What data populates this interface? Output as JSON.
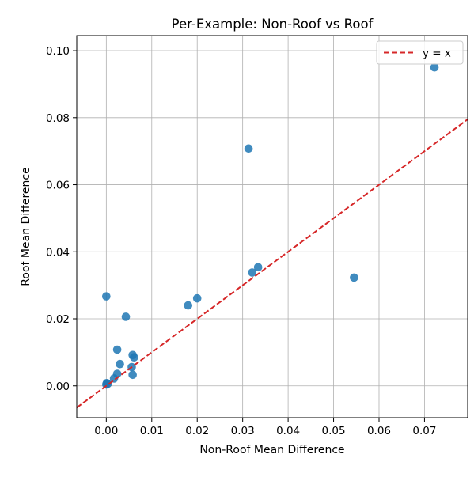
{
  "chart_data": {
    "type": "scatter",
    "title": "Per-Example: Non-Roof vs Roof",
    "xlabel": "Non-Roof Mean Difference",
    "ylabel": "Roof Mean Difference",
    "xlim": [
      -0.0065,
      0.0795
    ],
    "ylim": [
      -0.0095,
      0.1045
    ],
    "x_ticks": [
      "0.00",
      "0.01",
      "0.02",
      "0.03",
      "0.04",
      "0.05",
      "0.06",
      "0.07"
    ],
    "x_tick_values": [
      0,
      0.01,
      0.02,
      0.03,
      0.04,
      0.05,
      0.06,
      0.07
    ],
    "y_ticks": [
      "0.00",
      "0.02",
      "0.04",
      "0.06",
      "0.08",
      "0.10"
    ],
    "y_tick_values": [
      0,
      0.02,
      0.04,
      0.06,
      0.08,
      0.1
    ],
    "grid": true,
    "legend_position": "top-right",
    "series": [
      {
        "type": "scatter",
        "color": "#1f77b4",
        "points": [
          {
            "x": 0.0,
            "y": 0.0004
          },
          {
            "x": 0.0001,
            "y": 0.0008
          },
          {
            "x": 0.0003,
            "y": 0.0006
          },
          {
            "x": 0.0017,
            "y": 0.0022
          },
          {
            "x": 0.0024,
            "y": 0.0036
          },
          {
            "x": 0.003,
            "y": 0.0065
          },
          {
            "x": 0.0056,
            "y": 0.0056
          },
          {
            "x": 0.0058,
            "y": 0.0033
          },
          {
            "x": 0.0058,
            "y": 0.0092
          },
          {
            "x": 0.0061,
            "y": 0.0085
          },
          {
            "x": 0.0024,
            "y": 0.0108
          },
          {
            "x": 0.0,
            "y": 0.0267
          },
          {
            "x": 0.0043,
            "y": 0.0206
          },
          {
            "x": 0.018,
            "y": 0.024
          },
          {
            "x": 0.02,
            "y": 0.0261
          },
          {
            "x": 0.0321,
            "y": 0.0338
          },
          {
            "x": 0.0334,
            "y": 0.0354
          },
          {
            "x": 0.0313,
            "y": 0.0708
          },
          {
            "x": 0.0545,
            "y": 0.0323
          },
          {
            "x": 0.0722,
            "y": 0.095
          }
        ]
      },
      {
        "name": "y = x",
        "type": "line",
        "color": "#d62728",
        "dashed": true,
        "points": [
          {
            "x": -0.0065,
            "y": -0.0065
          },
          {
            "x": 0.0795,
            "y": 0.0795
          }
        ]
      }
    ]
  }
}
